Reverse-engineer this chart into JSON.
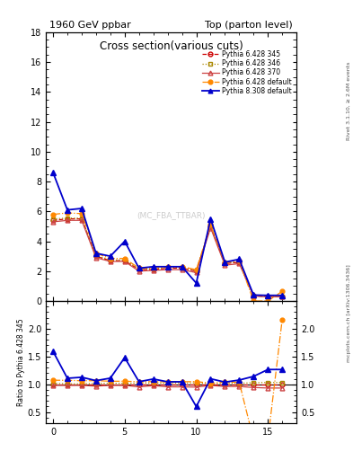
{
  "title_left": "1960 GeV ppbar",
  "title_right": "Top (parton level)",
  "plot_title": "Cross section",
  "plot_title2": "(various cuts)",
  "ylabel_ratio": "Ratio to Pythia 6.428 345",
  "right_label_top": "Rivet 3.1.10, ≥ 2.6M events",
  "right_label_bottom": "mcplots.cern.ch [arXiv:1306.3436]",
  "watermark": "(MC_FBA_TTBAR)",
  "xlim": [
    -0.5,
    17
  ],
  "ylim_main": [
    0,
    18
  ],
  "ylim_ratio": [
    0.3,
    2.5
  ],
  "xticks": [
    0,
    5,
    10,
    15
  ],
  "yticks_main": [
    0,
    2,
    4,
    6,
    8,
    10,
    12,
    14,
    16,
    18
  ],
  "yticks_ratio": [
    0.5,
    1.0,
    1.5,
    2.0
  ],
  "series": [
    {
      "label": "Pythia 6.428 345",
      "color": "#cc0000",
      "linestyle": "--",
      "marker": "o",
      "markerfacecolor": "none",
      "markersize": 3.5,
      "linewidth": 0.9,
      "x": [
        0,
        1,
        2,
        3,
        4,
        5,
        6,
        7,
        8,
        9,
        10,
        11,
        12,
        13,
        14,
        15,
        16
      ],
      "y": [
        5.4,
        5.5,
        5.5,
        3.0,
        2.7,
        2.7,
        2.1,
        2.1,
        2.2,
        2.2,
        2.0,
        5.0,
        2.5,
        2.6,
        0.35,
        0.3,
        0.3
      ]
    },
    {
      "label": "Pythia 6.428 346",
      "color": "#aa8800",
      "linestyle": ":",
      "marker": "s",
      "markerfacecolor": "none",
      "markersize": 3.5,
      "linewidth": 0.9,
      "x": [
        0,
        1,
        2,
        3,
        4,
        5,
        6,
        7,
        8,
        9,
        10,
        11,
        12,
        13,
        14,
        15,
        16
      ],
      "y": [
        5.5,
        5.55,
        5.55,
        3.05,
        2.75,
        2.75,
        2.15,
        2.15,
        2.25,
        2.25,
        2.05,
        5.05,
        2.55,
        2.65,
        0.36,
        0.31,
        0.31
      ]
    },
    {
      "label": "Pythia 6.428 370",
      "color": "#cc4444",
      "linestyle": "-",
      "marker": "^",
      "markerfacecolor": "none",
      "markersize": 3.5,
      "linewidth": 0.9,
      "x": [
        0,
        1,
        2,
        3,
        4,
        5,
        6,
        7,
        8,
        9,
        10,
        11,
        12,
        13,
        14,
        15,
        16
      ],
      "y": [
        5.3,
        5.4,
        5.4,
        2.9,
        2.65,
        2.65,
        2.0,
        2.05,
        2.1,
        2.1,
        1.9,
        4.9,
        2.4,
        2.5,
        0.33,
        0.28,
        0.28
      ]
    },
    {
      "label": "Pythia 6.428 default",
      "color": "#ff8800",
      "linestyle": "-.",
      "marker": "o",
      "markerfacecolor": "#ff8800",
      "markersize": 3.5,
      "linewidth": 0.9,
      "x": [
        0,
        1,
        2,
        3,
        4,
        5,
        6,
        7,
        8,
        9,
        10,
        11,
        12,
        13,
        14,
        15,
        16
      ],
      "y": [
        5.8,
        5.9,
        5.85,
        3.2,
        2.85,
        2.85,
        2.2,
        2.2,
        2.3,
        2.3,
        2.1,
        5.1,
        2.6,
        2.7,
        0.001,
        0.001,
        0.65
      ]
    },
    {
      "label": "Pythia 8.308 default",
      "color": "#0000cc",
      "linestyle": "-",
      "marker": "^",
      "markerfacecolor": "#0000cc",
      "markersize": 4.5,
      "linewidth": 1.3,
      "x": [
        0,
        1,
        2,
        3,
        4,
        5,
        6,
        7,
        8,
        9,
        10,
        11,
        12,
        13,
        14,
        15,
        16
      ],
      "y": [
        8.6,
        6.1,
        6.2,
        3.2,
        3.0,
        4.0,
        2.2,
        2.3,
        2.3,
        2.3,
        1.2,
        5.5,
        2.6,
        2.8,
        0.4,
        0.38,
        0.38
      ]
    }
  ]
}
